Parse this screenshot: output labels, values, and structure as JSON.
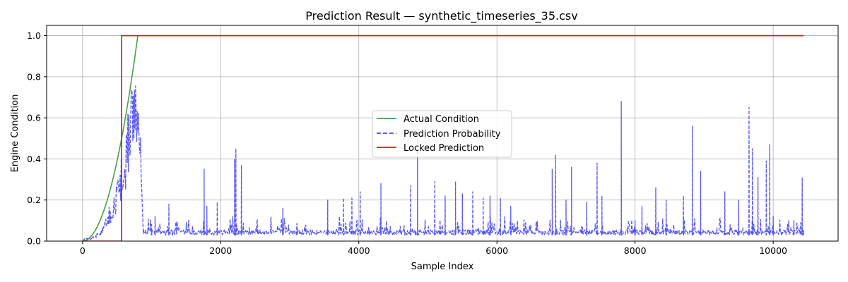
{
  "chart_data": {
    "type": "line",
    "title": "Prediction Result — synthetic_timeseries_35.csv",
    "xlabel": "Sample Index",
    "ylabel": "Engine Condition",
    "xlim": [
      -520,
      10940
    ],
    "ylim": [
      0,
      1.05
    ],
    "xticks": [
      0,
      2000,
      4000,
      6000,
      8000,
      10000
    ],
    "xtick_labels": [
      "0",
      "2000",
      "4000",
      "6000",
      "8000",
      "10000"
    ],
    "yticks": [
      0,
      0.2,
      0.4,
      0.6,
      0.8,
      1.0
    ],
    "ytick_labels": [
      "0.0",
      "0.2",
      "0.4",
      "0.6",
      "0.8",
      "1.0"
    ],
    "grid": true,
    "legend_position": "center-right",
    "series": [
      {
        "name": "Actual Condition",
        "color": "#4aa04a",
        "style": "solid",
        "points": [
          [
            0,
            0
          ],
          [
            100,
            0.016
          ],
          [
            200,
            0.064
          ],
          [
            300,
            0.144
          ],
          [
            400,
            0.256
          ],
          [
            500,
            0.4
          ],
          [
            600,
            0.576
          ],
          [
            700,
            0.784
          ],
          [
            800,
            1.0
          ]
        ]
      },
      {
        "name": "Prediction Probability",
        "color": "#4545f0",
        "style": "dashed",
        "baseline": 0.03,
        "points": [
          [
            0,
            0.0
          ],
          [
            50,
            0.02
          ],
          [
            100,
            0.01
          ],
          [
            200,
            0.03
          ],
          [
            300,
            0.06
          ],
          [
            380,
            0.14
          ],
          [
            450,
            0.2
          ],
          [
            520,
            0.27
          ],
          [
            560,
            0.38
          ],
          [
            600,
            0.3
          ],
          [
            640,
            0.5
          ],
          [
            680,
            0.62
          ],
          [
            700,
            0.7
          ],
          [
            730,
            0.6
          ],
          [
            760,
            0.81
          ],
          [
            790,
            0.55
          ],
          [
            820,
            0.67
          ],
          [
            850,
            0.35
          ],
          [
            880,
            0.05
          ],
          [
            1000,
            0.05
          ],
          [
            1050,
            0.12
          ],
          [
            1250,
            0.18
          ],
          [
            1300,
            0.05
          ],
          [
            1760,
            0.35
          ],
          [
            1800,
            0.17
          ],
          [
            1950,
            0.19
          ],
          [
            2200,
            0.4
          ],
          [
            2220,
            0.45
          ],
          [
            2300,
            0.37
          ],
          [
            2900,
            0.16
          ],
          [
            3550,
            0.2
          ],
          [
            3780,
            0.21
          ],
          [
            3900,
            0.21
          ],
          [
            4020,
            0.24
          ],
          [
            4320,
            0.28
          ],
          [
            4750,
            0.27
          ],
          [
            4850,
            0.5
          ],
          [
            5100,
            0.29
          ],
          [
            5250,
            0.22
          ],
          [
            5400,
            0.29
          ],
          [
            5500,
            0.23
          ],
          [
            5650,
            0.24
          ],
          [
            5800,
            0.21
          ],
          [
            5900,
            0.22
          ],
          [
            6050,
            0.21
          ],
          [
            6200,
            0.17
          ],
          [
            6800,
            0.35
          ],
          [
            6850,
            0.42
          ],
          [
            7000,
            0.2
          ],
          [
            7080,
            0.36
          ],
          [
            7300,
            0.19
          ],
          [
            7450,
            0.38
          ],
          [
            7520,
            0.22
          ],
          [
            7800,
            0.68
          ],
          [
            8000,
            0.1
          ],
          [
            8100,
            0.17
          ],
          [
            8300,
            0.26
          ],
          [
            8450,
            0.2
          ],
          [
            8700,
            0.22
          ],
          [
            8830,
            0.56
          ],
          [
            8950,
            0.34
          ],
          [
            9300,
            0.24
          ],
          [
            9500,
            0.2
          ],
          [
            9650,
            0.65
          ],
          [
            9700,
            0.45
          ],
          [
            9780,
            0.31
          ],
          [
            9900,
            0.39
          ],
          [
            9950,
            0.47
          ],
          [
            10000,
            0.12
          ],
          [
            10300,
            0.1
          ],
          [
            10420,
            0.31
          ],
          [
            10440,
            0.05
          ]
        ]
      },
      {
        "name": "Locked Prediction",
        "color": "#e01010",
        "style": "solid",
        "points": [
          [
            0,
            0
          ],
          [
            565,
            0
          ],
          [
            565,
            1.0
          ],
          [
            10440,
            1.0
          ]
        ]
      }
    ]
  }
}
